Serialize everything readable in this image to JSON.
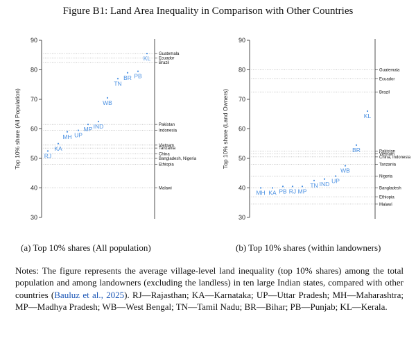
{
  "figure_title": "Figure B1: Land Area Inequality in Comparison with Other Countries",
  "chart_data": [
    {
      "type": "scatter",
      "ylabel": "Top 10% share (All Population)",
      "ylim": [
        30,
        90
      ],
      "yticks": [
        30,
        40,
        50,
        60,
        70,
        80,
        90
      ],
      "caption": "(a) Top 10% shares (All population)",
      "points": [
        {
          "label": "RJ",
          "y": 52.5
        },
        {
          "label": "KA",
          "y": 55.0
        },
        {
          "label": "MH",
          "y": 59.0
        },
        {
          "label": "UP",
          "y": 59.5
        },
        {
          "label": "MP",
          "y": 61.5
        },
        {
          "label": "IND",
          "y": 62.5
        },
        {
          "label": "WB",
          "y": 70.5
        },
        {
          "label": "TN",
          "y": 77.0
        },
        {
          "label": "BR",
          "y": 79.0
        },
        {
          "label": "PB",
          "y": 79.5
        },
        {
          "label": "KL",
          "y": 85.5
        }
      ],
      "references": [
        {
          "label": "Guatemala",
          "y": 85.5
        },
        {
          "label": "Ecuador",
          "y": 84.0
        },
        {
          "label": "Brazil",
          "y": 82.5
        },
        {
          "label": "Pakistan",
          "y": 61.5
        },
        {
          "label": "Indonesia",
          "y": 59.5
        },
        {
          "label": "Vietnam",
          "y": 54.5
        },
        {
          "label": "Tanzania",
          "y": 53.5
        },
        {
          "label": "China",
          "y": 51.5
        },
        {
          "label": "Bangladesh, Nigeria",
          "y": 50.0
        },
        {
          "label": "Ethiopia",
          "y": 48.0
        },
        {
          "label": "Malawi",
          "y": 40.0
        }
      ]
    },
    {
      "type": "scatter",
      "ylabel": "Top 10% share (Land Owners)",
      "ylim": [
        30,
        90
      ],
      "yticks": [
        30,
        40,
        50,
        60,
        70,
        80,
        90
      ],
      "caption": "(b) Top 10% shares (within landowners)",
      "points": [
        {
          "label": "MH",
          "y": 40.0
        },
        {
          "label": "KA",
          "y": 40.0
        },
        {
          "label": "PB",
          "y": 40.5
        },
        {
          "label": "RJ",
          "y": 40.5
        },
        {
          "label": "MP",
          "y": 40.5
        },
        {
          "label": "TN",
          "y": 42.5
        },
        {
          "label": "IND",
          "y": 43.0
        },
        {
          "label": "UP",
          "y": 44.0
        },
        {
          "label": "WB",
          "y": 47.5
        },
        {
          "label": "BR",
          "y": 54.5
        },
        {
          "label": "KL",
          "y": 66.0
        }
      ],
      "references": [
        {
          "label": "Guatemala",
          "y": 80.0
        },
        {
          "label": "Ecuador",
          "y": 77.0
        },
        {
          "label": "Brazil",
          "y": 72.5
        },
        {
          "label": "Pakistan",
          "y": 52.5
        },
        {
          "label": "Vietnam",
          "y": 51.5
        },
        {
          "label": "China, Indonesia",
          "y": 50.5
        },
        {
          "label": "Tanzania",
          "y": 48.0
        },
        {
          "label": "Nigeria",
          "y": 44.0
        },
        {
          "label": "Bangladesh",
          "y": 40.0
        },
        {
          "label": "Ethiopia",
          "y": 37.0
        },
        {
          "label": "Malawi",
          "y": 34.5
        }
      ]
    }
  ],
  "notes": {
    "prefix": "Notes: The figure represents the average village-level land inequality (top 10% shares) among the total population and among landowners (excluding the landless) in ten large Indian states, compared with other countries (",
    "citation": "Bauluz et al., 2025",
    "suffix": "). RJ—Rajasthan; KA—Karnataka; UP—Uttar Pradesh; MH—Maharashtra; MP—Madhya Pradesh; WB—West Bengal; TN—Tamil Nadu; BR—Bihar; PB—Punjab; KL—Kerala."
  }
}
